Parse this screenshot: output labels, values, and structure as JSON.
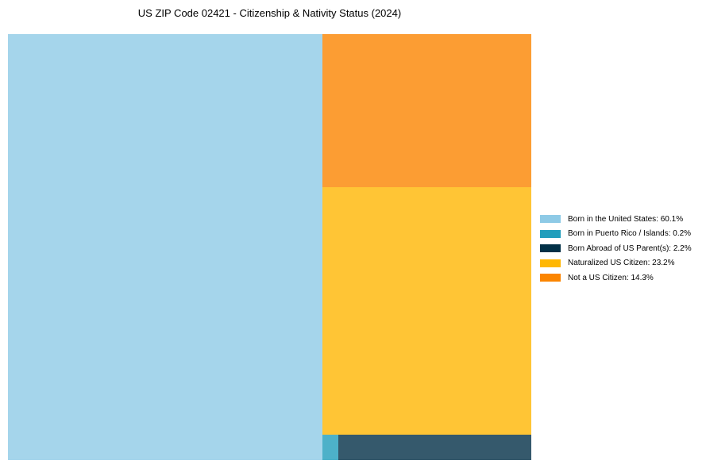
{
  "chart_data": {
    "type": "treemap",
    "title": "US ZIP Code 02421 - Citizenship & Nativity Status (2024)",
    "series": [
      {
        "name": "Born in the United States",
        "value": 60.1,
        "label": "Born in the United States: 60.1%",
        "color": "#8ecae6"
      },
      {
        "name": "Born in Puerto Rico / Islands",
        "value": 0.2,
        "label": "Born in Puerto Rico / Islands: 0.2%",
        "color": "#219ebc"
      },
      {
        "name": "Born Abroad of US Parent(s)",
        "value": 2.2,
        "label": "Born Abroad of US Parent(s): 2.2%",
        "color": "#023047"
      },
      {
        "name": "Naturalized US Citizen",
        "value": 23.2,
        "label": "Naturalized US Citizen: 23.2%",
        "color": "#ffb703"
      },
      {
        "name": "Not a US Citizen",
        "value": 14.3,
        "label": "Not a US Citizen: 14.3%",
        "color": "#fb8500"
      }
    ],
    "legend_position": "right"
  }
}
